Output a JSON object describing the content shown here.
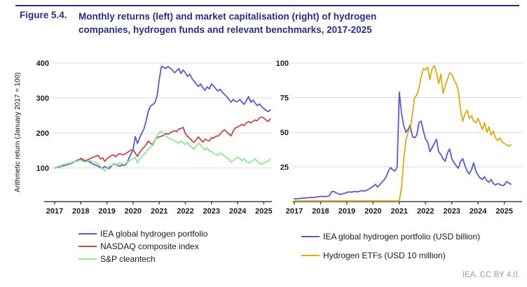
{
  "figure": {
    "label": "Figure 5.4.",
    "title_line1": "Monthly returns (left) and market capitalisation (right) of hydrogen",
    "title_line2": "companies, hydrogen funds and relevant benchmarks, 2017-2025"
  },
  "attribution": "IEA. CC BY 4.0.",
  "colors": {
    "heading_navy": "#2d2d7e",
    "portfolio_blue": "#5a5ac6",
    "nasdaq_red": "#bf4a47",
    "cleantech_green": "#90e49a",
    "etf_yellow": "#d3ae14",
    "gridline_gray": "#d9d9d9",
    "axis_dark": "#404040",
    "attribution_gray": "#9b9b9b"
  },
  "chart_data": [
    {
      "type": "line",
      "title": "Monthly returns",
      "ylabel": "Arithmetic return (January 2017 = 100)",
      "x_start": "2017-01",
      "frequency": "monthly",
      "xticks": [
        "2017",
        "2018",
        "2019",
        "2020",
        "2021",
        "2022",
        "2023",
        "2024",
        "2025"
      ],
      "yticks": [
        100,
        200,
        300,
        400
      ],
      "ylim": [
        0,
        420
      ],
      "grid": true,
      "legend_position": "bottom-left",
      "series": [
        {
          "name": "IEA global hydrogen portfolio",
          "color": "#5a5ac6",
          "values": [
            100,
            102,
            103,
            105,
            106,
            108,
            110,
            112,
            114,
            117,
            121,
            124,
            125,
            121,
            118,
            120,
            117,
            113,
            110,
            108,
            105,
            101,
            100,
            104,
            101,
            98,
            105,
            112,
            110,
            107,
            105,
            110,
            107,
            112,
            126,
            140,
            152,
            190,
            170,
            186,
            200,
            212,
            235,
            262,
            277,
            281,
            286,
            305,
            352,
            390,
            388,
            384,
            390,
            386,
            380,
            372,
            378,
            384,
            370,
            380,
            372,
            362,
            368,
            356,
            348,
            340,
            333,
            340,
            330,
            322,
            332,
            326,
            340,
            334,
            326,
            320,
            325,
            316,
            310,
            304,
            296,
            288,
            296,
            290,
            290,
            296,
            288,
            282,
            292,
            304,
            288,
            294,
            286,
            278,
            283,
            276,
            270,
            265,
            261,
            266
          ]
        },
        {
          "name": "NASDAQ composite index",
          "color": "#bf4a47",
          "values": [
            100,
            103,
            105,
            107,
            109,
            111,
            112,
            114,
            116,
            118,
            120,
            122,
            128,
            124,
            121,
            123,
            126,
            129,
            131,
            134,
            136,
            126,
            129,
            119,
            127,
            131,
            135,
            138,
            132,
            139,
            141,
            138,
            139,
            143,
            147,
            151,
            152,
            143,
            133,
            144,
            153,
            159,
            167,
            177,
            170,
            167,
            179,
            187,
            189,
            191,
            193,
            199,
            196,
            201,
            203,
            207,
            204,
            211,
            213,
            216,
            198,
            190,
            185,
            178,
            173,
            181,
            189,
            181,
            174,
            182,
            180,
            177,
            187,
            185,
            191,
            191,
            197,
            205,
            209,
            203,
            197,
            192,
            206,
            215,
            217,
            221,
            225,
            221,
            229,
            233,
            229,
            233,
            237,
            235,
            243,
            246,
            243,
            237,
            233,
            240
          ]
        },
        {
          "name": "S&P cleantech",
          "color": "#90e49a",
          "values": [
            100,
            103,
            105,
            107,
            109,
            111,
            113,
            114,
            116,
            118,
            119,
            121,
            123,
            119,
            117,
            119,
            121,
            119,
            117,
            115,
            112,
            104,
            97,
            92,
            99,
            105,
            107,
            111,
            108,
            113,
            115,
            112,
            110,
            115,
            119,
            123,
            127,
            131,
            115,
            125,
            133,
            139,
            146,
            154,
            160,
            164,
            177,
            192,
            202,
            205,
            197,
            191,
            187,
            184,
            181,
            177,
            174,
            171,
            178,
            171,
            167,
            173,
            164,
            159,
            154,
            163,
            171,
            166,
            157,
            151,
            158,
            149,
            147,
            142,
            139,
            137,
            143,
            138,
            134,
            129,
            124,
            117,
            121,
            127,
            131,
            127,
            121,
            126,
            119,
            115,
            117,
            121,
            126,
            119,
            114,
            111,
            114,
            117,
            119,
            126
          ]
        }
      ]
    },
    {
      "type": "line",
      "title": "Market capitalisation",
      "ylabel": "",
      "x_start": "2017-01",
      "frequency": "monthly",
      "xticks": [
        "2017",
        "2018",
        "2019",
        "2020",
        "2021",
        "2022",
        "2023",
        "2024",
        "2025"
      ],
      "yticks": [
        25,
        50,
        75,
        100
      ],
      "ylim": [
        0,
        105
      ],
      "grid": true,
      "legend_position": "bottom-left",
      "series": [
        {
          "name": "IEA global hydrogen portfolio (USD billion)",
          "color": "#5a5ac6",
          "values": [
            2,
            2.1,
            2.2,
            2.3,
            2.5,
            2.6,
            2.7,
            2.9,
            3,
            3.1,
            3.3,
            3.5,
            3.8,
            3.7,
            3.6,
            3.7,
            4.2,
            7,
            7.4,
            6.4,
            5.6,
            5.2,
            5.6,
            6,
            6.6,
            7,
            6.8,
            7.1,
            7.3,
            7,
            7.6,
            7.9,
            7.6,
            8.2,
            9,
            10,
            11,
            12.5,
            10.5,
            12,
            14,
            15.5,
            18,
            22,
            24.5,
            23,
            22,
            25,
            79,
            64,
            55,
            50,
            52,
            55,
            47,
            46,
            48,
            57,
            58,
            51,
            45,
            43,
            36,
            39,
            42,
            45,
            36,
            34,
            31,
            29,
            35,
            38,
            31,
            28,
            26,
            24,
            29,
            31,
            26,
            22,
            20,
            23,
            28,
            22,
            19,
            17,
            16,
            18,
            15,
            14,
            16,
            13,
            12,
            13,
            12.5,
            11.5,
            12,
            14.5,
            13.5,
            12.5
          ]
        },
        {
          "name": "Hydrogen ETFs (USD 10 million)",
          "color": "#d3ae14",
          "values": [
            0.5,
            0.5,
            0.5,
            0.5,
            0.5,
            0.5,
            0.5,
            0.5,
            0.5,
            0.5,
            0.5,
            0.5,
            0.5,
            0.5,
            0.5,
            0.5,
            0.5,
            0.5,
            0.5,
            0.5,
            0.5,
            0.5,
            0.5,
            0.5,
            0.5,
            0.5,
            0.5,
            0.5,
            0.5,
            0.5,
            0.5,
            0.5,
            0.5,
            0.5,
            0.5,
            0.5,
            0.5,
            0.5,
            0.5,
            0.5,
            0.5,
            0.5,
            0.5,
            0.5,
            0.5,
            0.5,
            0.5,
            0.5,
            0.5,
            10,
            30,
            44,
            50,
            52,
            63,
            75,
            77,
            82,
            90,
            96,
            95,
            97,
            88,
            96,
            98,
            93,
            85,
            92,
            78,
            84,
            88,
            93,
            92,
            88,
            85,
            80,
            66,
            58,
            63,
            66,
            60,
            62,
            58,
            57,
            60,
            56,
            52,
            57,
            50,
            54,
            48,
            51,
            46,
            44,
            46,
            43,
            42,
            41,
            40,
            41
          ]
        }
      ]
    }
  ]
}
